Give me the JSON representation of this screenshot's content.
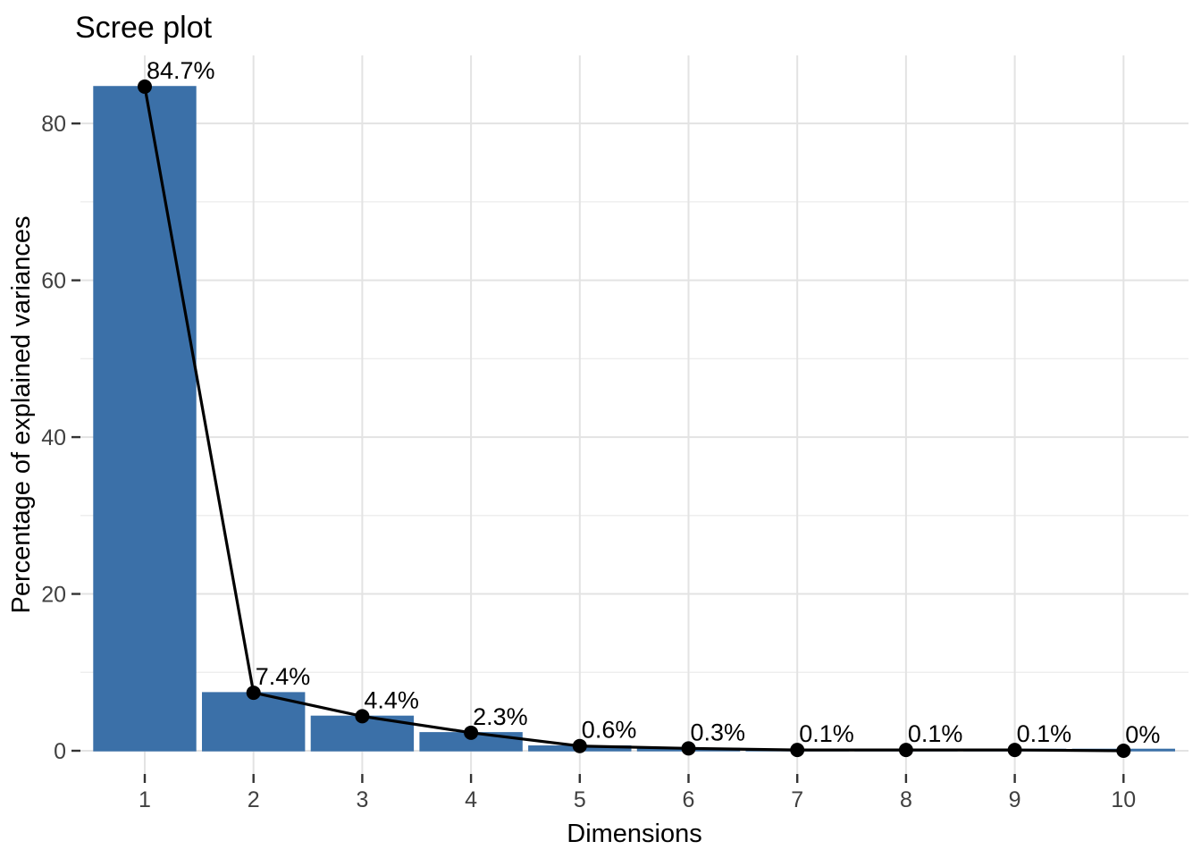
{
  "chart_data": {
    "type": "bar",
    "title": "Scree plot",
    "xlabel": "Dimensions",
    "ylabel": "Percentage of explained variances",
    "categories": [
      "1",
      "2",
      "3",
      "4",
      "5",
      "6",
      "7",
      "8",
      "9",
      "10"
    ],
    "values": [
      84.7,
      7.4,
      4.4,
      2.3,
      0.6,
      0.3,
      0.1,
      0.1,
      0.1,
      0
    ],
    "value_labels": [
      "84.7%",
      "7.4%",
      "4.4%",
      "2.3%",
      "0.6%",
      "0.3%",
      "0.1%",
      "0.1%",
      "0.1%",
      "0%"
    ],
    "overlay_line": true,
    "y_ticks": [
      0,
      20,
      40,
      60,
      80
    ],
    "y_minor_ticks": [
      10,
      30,
      50,
      70
    ],
    "ylim": [
      0,
      88.7
    ],
    "grid": true,
    "legend": "none",
    "colors": {
      "bar": "#3B70A8",
      "line": "#000000",
      "point": "#000000",
      "grid_major": "#E3E3E3",
      "grid_minor": "#ECECEC",
      "tick_mark": "#333333",
      "tick_label": "#404040",
      "text": "#000000",
      "background": "#FFFFFF"
    }
  }
}
